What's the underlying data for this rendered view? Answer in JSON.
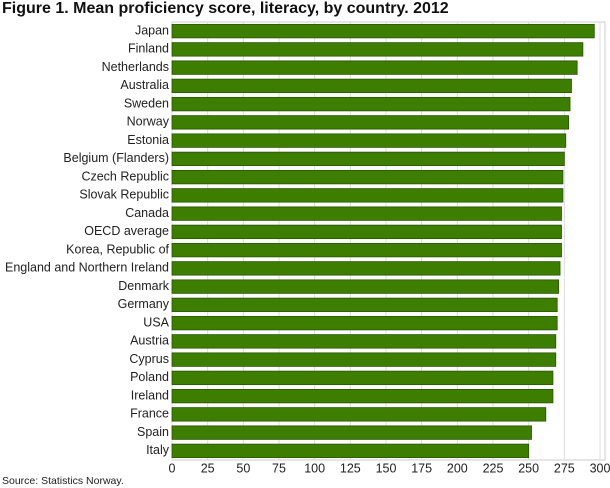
{
  "chart_data": {
    "type": "bar",
    "orientation": "horizontal",
    "title": "Figure 1. Mean proficiency score, literacy, by country. 2012",
    "source": "Source: Statistics Norway.",
    "categories": [
      "Japan",
      "Finland",
      "Netherlands",
      "Australia",
      "Sweden",
      "Norway",
      "Estonia",
      "Belgium (Flanders)",
      "Czech Republic",
      "Slovak Republic",
      "Canada",
      "OECD average",
      "Korea, Republic of",
      "England and Northern Ireland",
      "Denmark",
      "Germany",
      "USA",
      "Austria",
      "Cyprus",
      "Poland",
      "Ireland",
      "France",
      "Spain",
      "Italy"
    ],
    "values": [
      296,
      288,
      284,
      280,
      279,
      278,
      276,
      275,
      274,
      274,
      273,
      273,
      273,
      272,
      271,
      270,
      270,
      269,
      269,
      267,
      267,
      262,
      252,
      250
    ],
    "color": "#3d7d00",
    "xlim": [
      0,
      300
    ],
    "xticks": [
      0,
      25,
      50,
      75,
      100,
      125,
      150,
      175,
      200,
      225,
      250,
      275,
      300
    ],
    "grid": true
  }
}
